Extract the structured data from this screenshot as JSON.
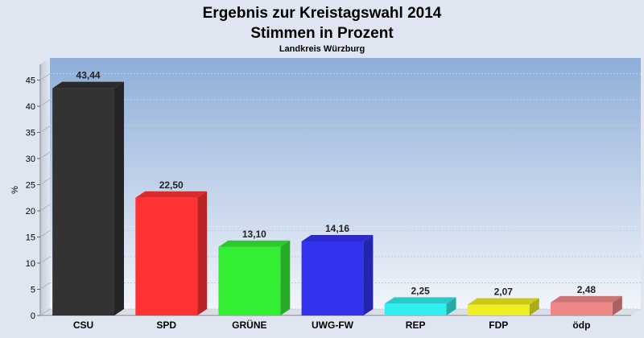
{
  "chart_data": {
    "type": "bar",
    "title": "Ergebnis zur Kreistagswahl 2014",
    "title_line2": "Stimmen in Prozent",
    "subtitle": "Landkreis Würzburg",
    "ylabel": "%",
    "ylim": [
      0,
      48
    ],
    "yticks": [
      0,
      5,
      10,
      15,
      20,
      25,
      30,
      35,
      40,
      45
    ],
    "grid": true,
    "categories": [
      "CSU",
      "SPD",
      "GRÜNE",
      "UWG-FW",
      "REP",
      "FDP",
      "ödp"
    ],
    "values": [
      43.44,
      22.5,
      13.1,
      14.16,
      2.25,
      2.07,
      2.48
    ],
    "value_labels": [
      "43,44",
      "22,50",
      "13,10",
      "14,16",
      "2,25",
      "2,07",
      "2,48"
    ],
    "colors": [
      "#333333",
      "#ff3333",
      "#33ee33",
      "#3333ee",
      "#33eeee",
      "#eeee22",
      "#ee8888"
    ]
  }
}
